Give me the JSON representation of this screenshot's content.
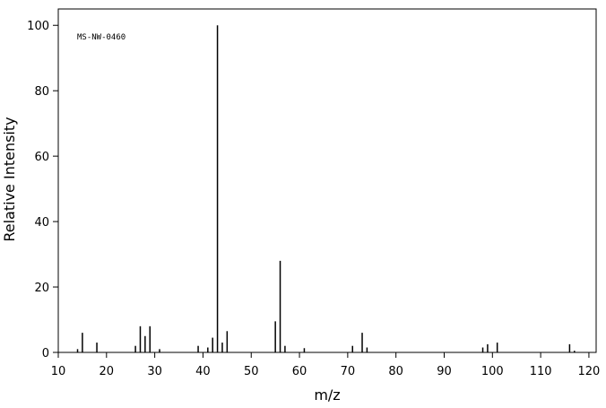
{
  "chart_data": {
    "type": "stem",
    "annotation": "MS-NW-0460",
    "x_label": "m/z",
    "y_label": "Relative Intensity",
    "x": [
      14,
      15,
      18,
      26,
      27,
      28,
      29,
      31,
      39,
      41,
      42,
      43,
      44,
      45,
      55,
      56,
      57,
      61,
      71,
      73,
      74,
      98,
      99,
      101,
      116,
      117
    ],
    "values": [
      1,
      6,
      3,
      2,
      8,
      5,
      8,
      1,
      2,
      1.5,
      4.5,
      100,
      3,
      6.5,
      9.5,
      28,
      2,
      1.3,
      2,
      6,
      1.5,
      1.5,
      2.5,
      3,
      2.5,
      0.5
    ],
    "color": "#000000",
    "xlim": [
      10,
      121.5
    ],
    "xticks": [
      10,
      20,
      30,
      40,
      50,
      60,
      70,
      80,
      90,
      100,
      110,
      120
    ],
    "ylim": [
      0,
      105
    ],
    "yticks": [
      0,
      20,
      40,
      60,
      80,
      100
    ]
  }
}
